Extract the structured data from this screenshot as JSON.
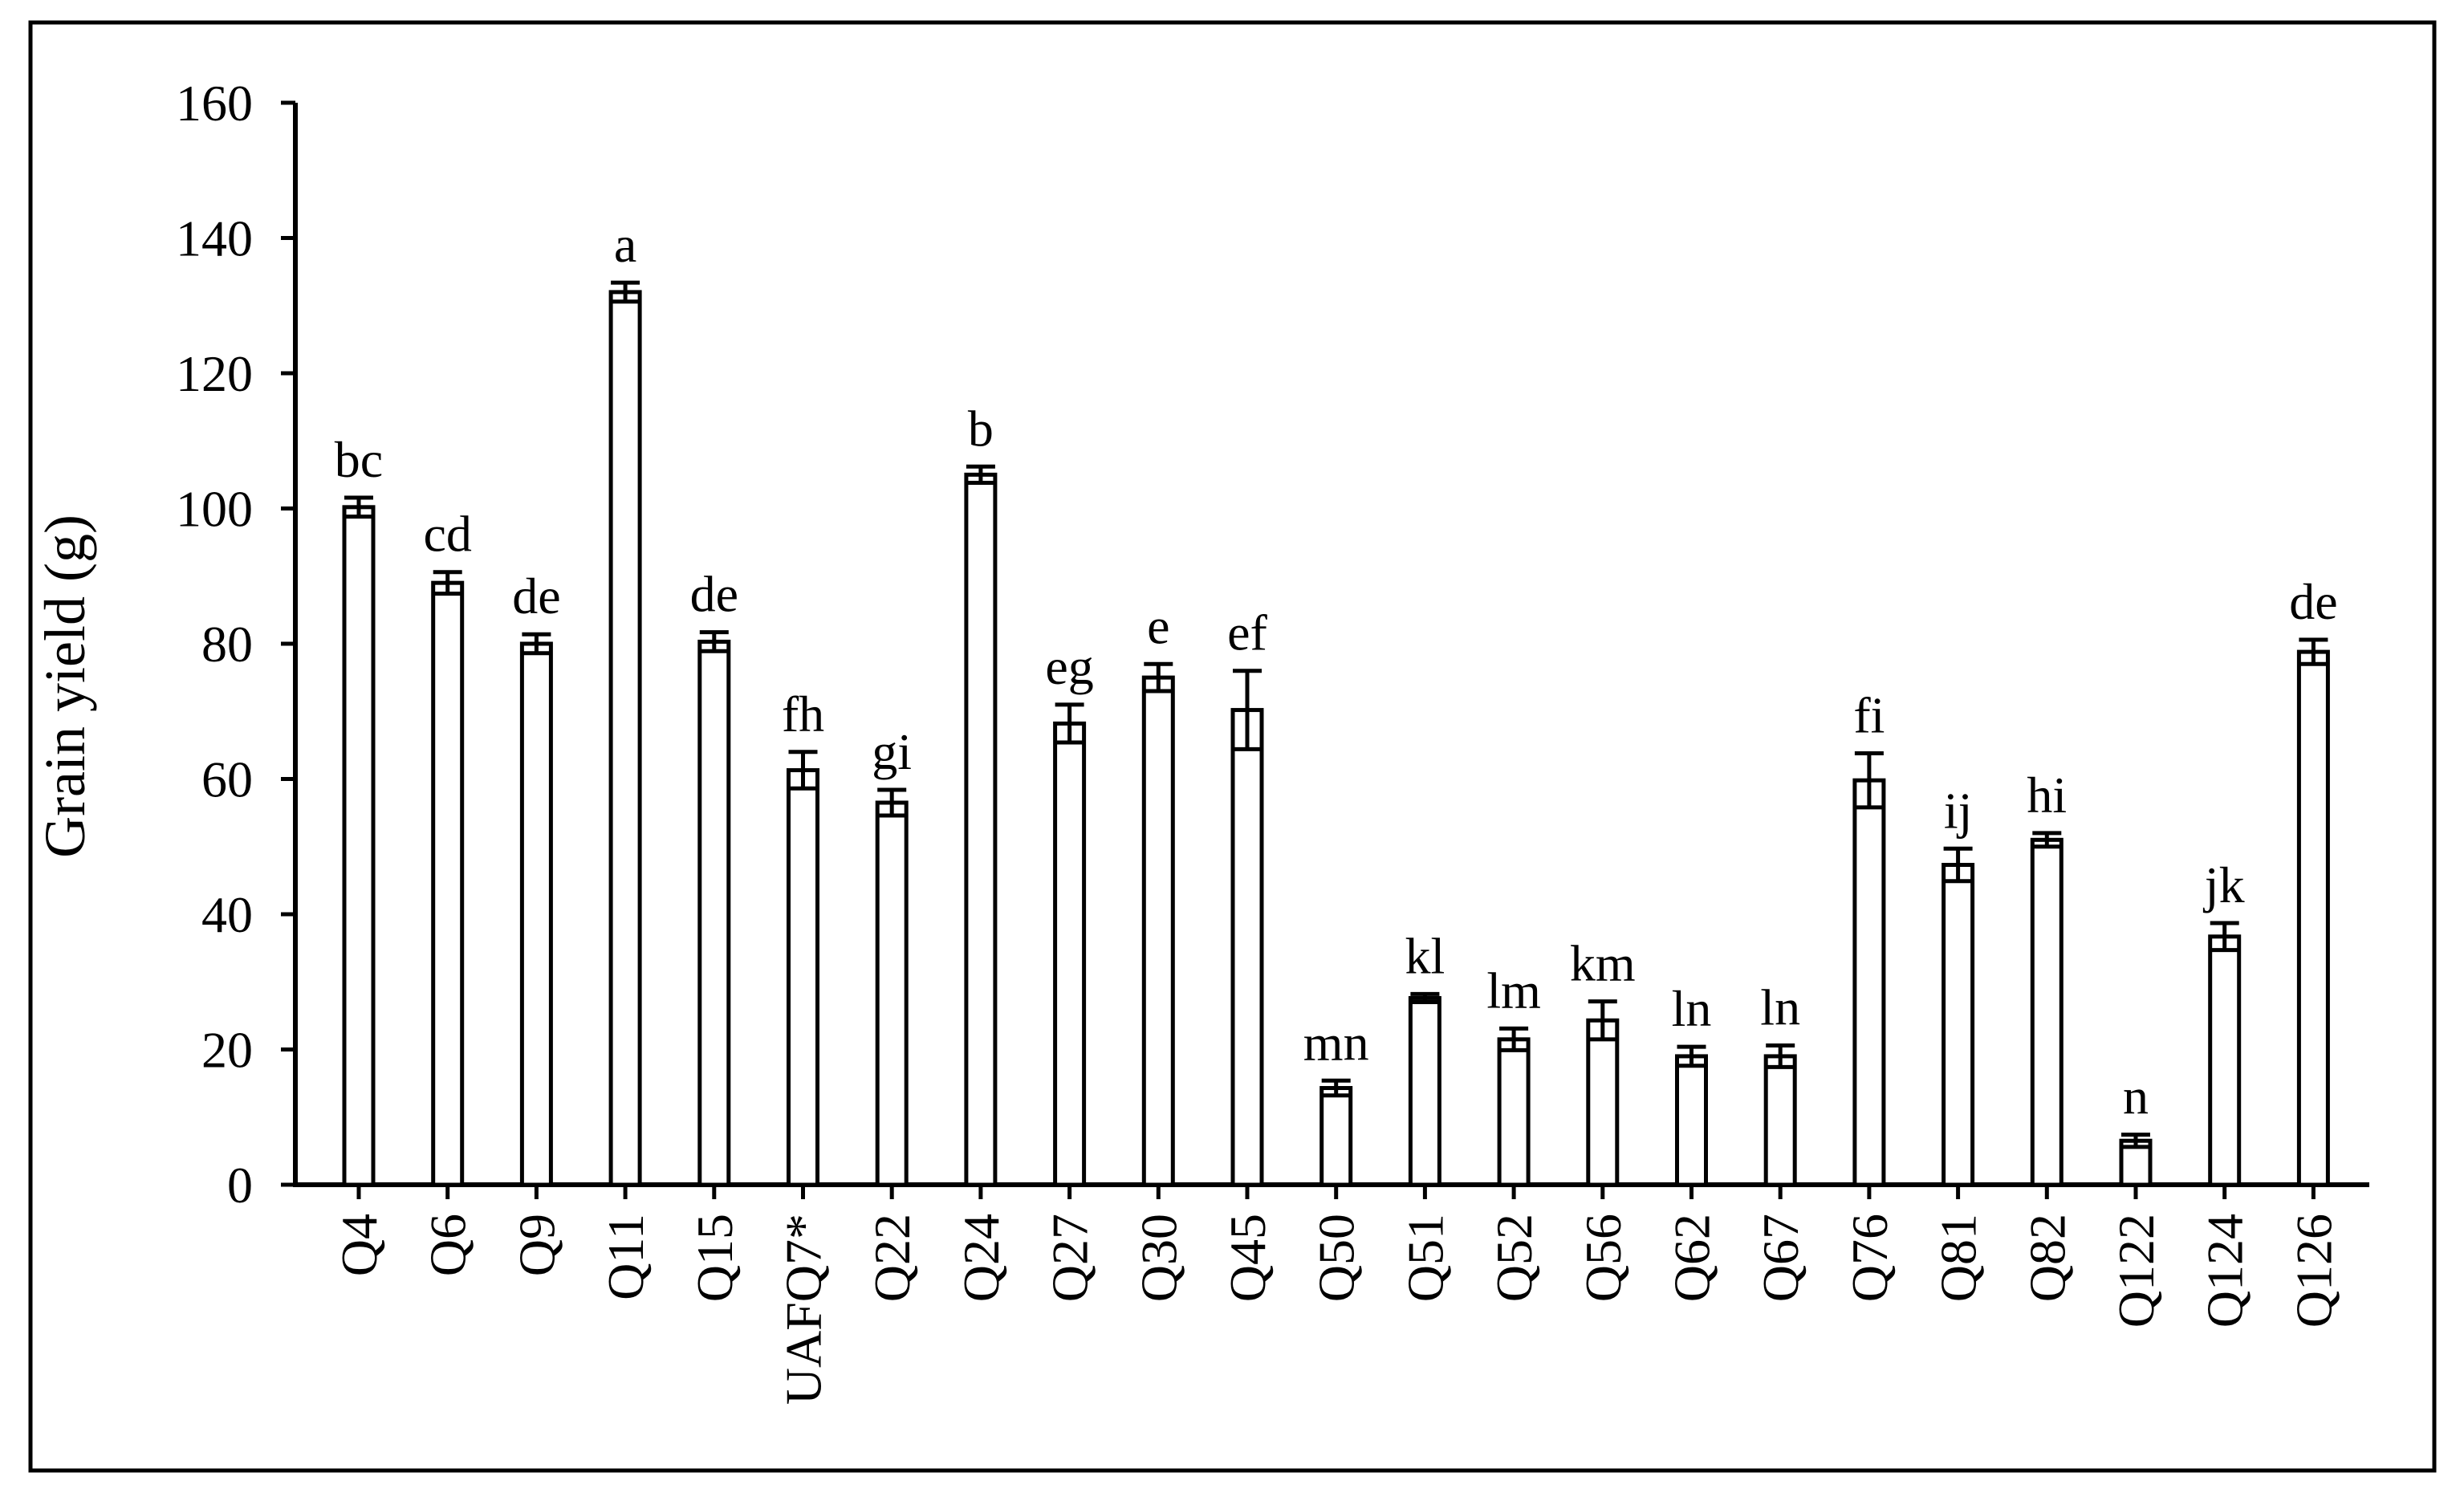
{
  "chart_data": {
    "type": "bar",
    "title": "",
    "xlabel": "",
    "ylabel": "Grain yield (g)",
    "ylim": [
      0,
      160
    ],
    "yticks": [
      "0",
      "20",
      "40",
      "60",
      "80",
      "100",
      "120",
      "140",
      "160"
    ],
    "grid": false,
    "legend": "none",
    "categories": [
      "Q4",
      "Q6",
      "Q9",
      "Q11",
      "Q15",
      "UAFQ7*",
      "Q22",
      "Q24",
      "Q27",
      "Q30",
      "Q45",
      "Q50",
      "Q51",
      "Q52",
      "Q56",
      "Q62",
      "Q67",
      "Q76",
      "Q81",
      "Q82",
      "Q122",
      "Q124",
      "Q126"
    ],
    "values": [
      100.2,
      89.0,
      80.0,
      132.0,
      80.3,
      61.3,
      56.5,
      105.0,
      68.2,
      75.0,
      70.2,
      14.3,
      27.6,
      21.5,
      24.3,
      19.0,
      19.0,
      59.8,
      47.3,
      51.0,
      6.5,
      36.7,
      78.8
    ],
    "errors": [
      1.4,
      1.6,
      1.4,
      1.4,
      1.4,
      2.7,
      1.9,
      1.2,
      2.8,
      2.0,
      5.8,
      1.1,
      0.6,
      1.6,
      2.8,
      1.4,
      1.6,
      4.0,
      2.4,
      1.0,
      0.9,
      2.0,
      1.8
    ],
    "significance_letters": [
      "bc",
      "cd",
      "de",
      "a",
      "de",
      "fh",
      "gi",
      "b",
      "eg",
      "e",
      "ef",
      "mn",
      "kl",
      "lm",
      "km",
      "ln",
      "ln",
      "fi",
      "ij",
      "hi",
      "n",
      "jk",
      "de"
    ],
    "colors": {
      "bar_fill": "#ffffff",
      "bar_stroke": "#000000",
      "axis": "#000000",
      "frame": "#000000"
    }
  }
}
